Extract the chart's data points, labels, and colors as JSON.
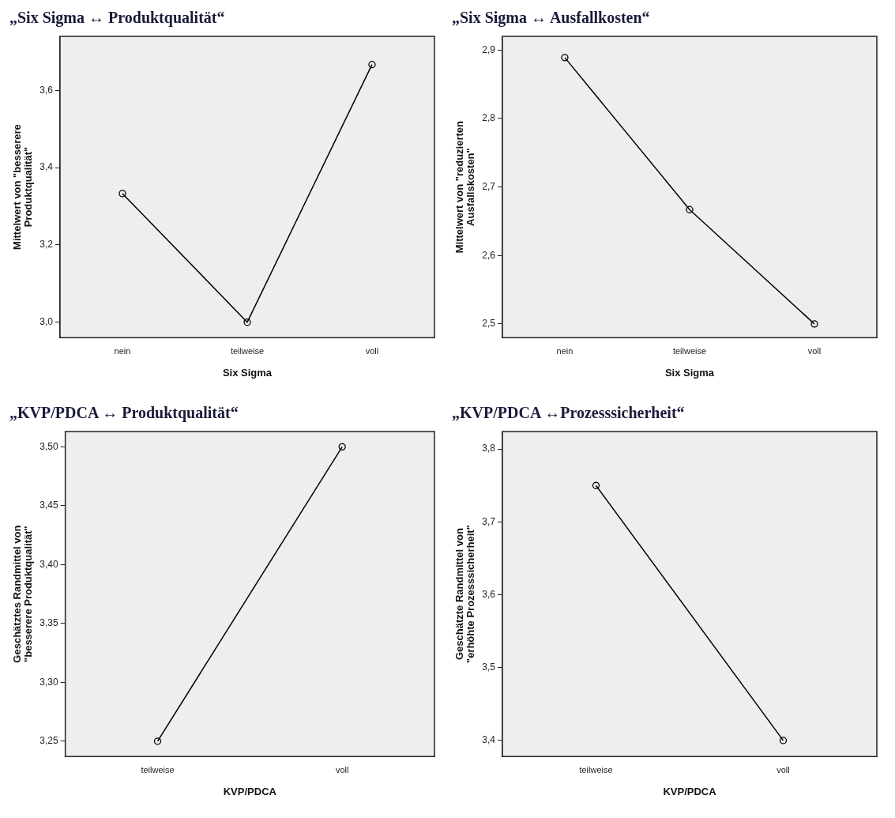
{
  "chart_data": [
    {
      "type": "line",
      "title": "„Six Sigma ↔ Produktqualität“",
      "xlabel": "Six Sigma",
      "ylabel": "Mittelwert von \"besserere Produktqualität\"",
      "categories": [
        "nein",
        "teilweise",
        "voll"
      ],
      "series": [
        {
          "color": "#000000",
          "values": [
            3.333,
            3.0,
            3.667
          ]
        }
      ],
      "ylim": [
        2.96,
        3.74
      ],
      "yticks": [
        {
          "value": 3.0,
          "label": "3,0"
        },
        {
          "value": 3.2,
          "label": "3,2"
        },
        {
          "value": 3.4,
          "label": "3,4"
        },
        {
          "value": 3.6,
          "label": "3,6"
        }
      ],
      "grid": false,
      "legend": false,
      "marker": "circle",
      "line_style": "solid"
    },
    {
      "type": "line",
      "title": "„Six Sigma ↔ Ausfallkosten“",
      "xlabel": "Six Sigma",
      "ylabel": "Mittelwert von \"reduzierten Ausfallskosten\"",
      "categories": [
        "nein",
        "teilweise",
        "voll"
      ],
      "series": [
        {
          "color": "#000000",
          "values": [
            2.889,
            2.667,
            2.5
          ]
        }
      ],
      "ylim": [
        2.48,
        2.92
      ],
      "yticks": [
        {
          "value": 2.5,
          "label": "2,5"
        },
        {
          "value": 2.6,
          "label": "2,6"
        },
        {
          "value": 2.7,
          "label": "2,7"
        },
        {
          "value": 2.8,
          "label": "2,8"
        },
        {
          "value": 2.9,
          "label": "2,9"
        }
      ],
      "grid": false,
      "legend": false,
      "marker": "circle",
      "line_style": "solid"
    },
    {
      "type": "line",
      "title": "„KVP/PDCA ↔ Produktqualität“",
      "xlabel": "KVP/PDCA",
      "ylabel": "Geschätztes Randmittel von \"besserere Produktqualität\"",
      "categories": [
        "teilweise",
        "voll"
      ],
      "series": [
        {
          "color": "#000000",
          "values": [
            3.25,
            3.5
          ]
        }
      ],
      "ylim": [
        3.237,
        3.513
      ],
      "yticks": [
        {
          "value": 3.25,
          "label": "3,25"
        },
        {
          "value": 3.3,
          "label": "3,30"
        },
        {
          "value": 3.35,
          "label": "3,35"
        },
        {
          "value": 3.4,
          "label": "3,40"
        },
        {
          "value": 3.45,
          "label": "3,45"
        },
        {
          "value": 3.5,
          "label": "3,50"
        }
      ],
      "grid": false,
      "legend": false,
      "marker": "circle",
      "line_style": "solid"
    },
    {
      "type": "line",
      "title": "„KVP/PDCA ↔Prozesssicherheit“",
      "xlabel": "KVP/PDCA",
      "ylabel": "Geschätzte Randmittel von \"erhöhte Prozesssicherheit\"",
      "categories": [
        "teilweise",
        "voll"
      ],
      "series": [
        {
          "color": "#000000",
          "values": [
            3.75,
            3.4
          ]
        }
      ],
      "ylim": [
        3.378,
        3.824
      ],
      "yticks": [
        {
          "value": 3.4,
          "label": "3,4"
        },
        {
          "value": 3.5,
          "label": "3,5"
        },
        {
          "value": 3.6,
          "label": "3,6"
        },
        {
          "value": 3.7,
          "label": "3,7"
        },
        {
          "value": 3.8,
          "label": "3,8"
        }
      ],
      "grid": false,
      "legend": false,
      "marker": "circle",
      "line_style": "solid"
    }
  ]
}
